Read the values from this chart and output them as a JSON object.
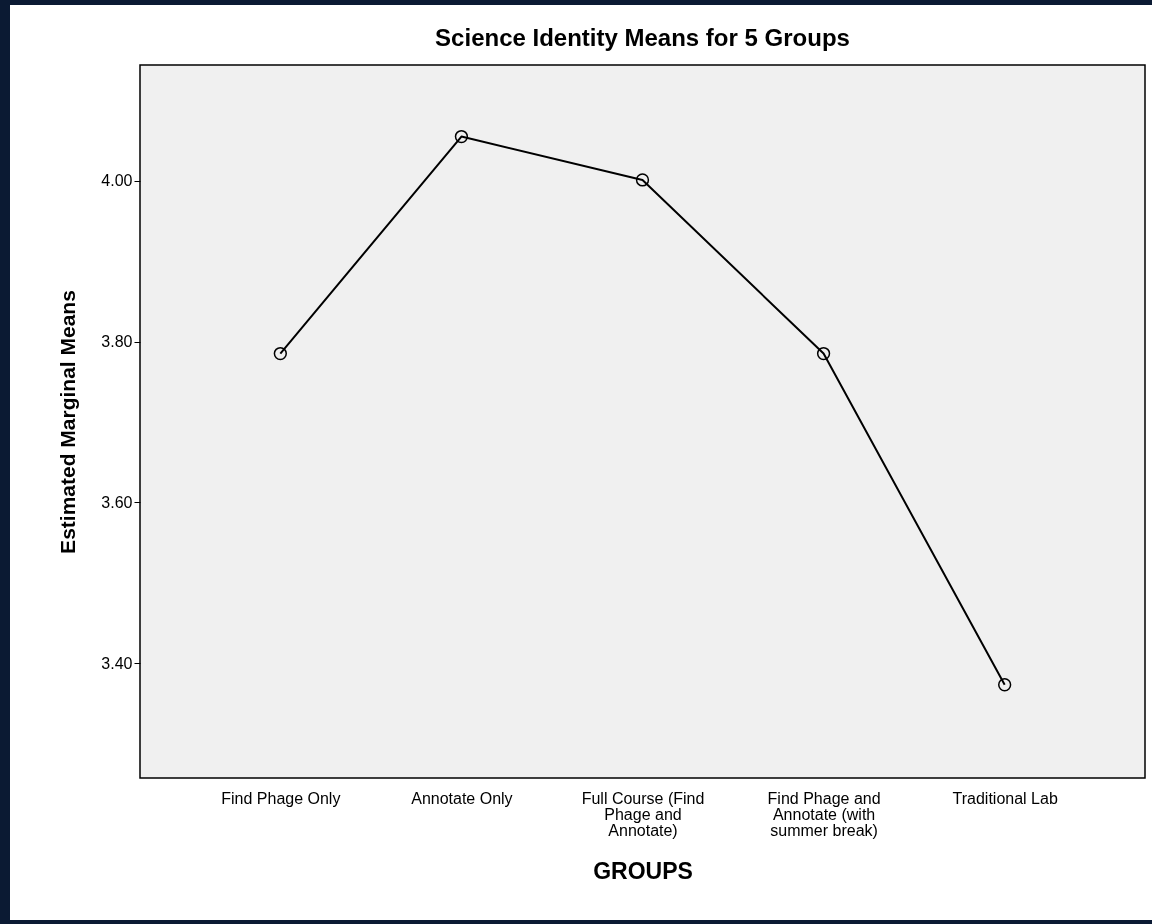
{
  "chart_data": {
    "type": "line",
    "title": "Science Identity Means for 5 Groups",
    "xlabel": "GROUPS",
    "ylabel": "Estimated Marginal Means",
    "categories": [
      "Find Phage Only",
      "Annotate Only",
      "Full Course (Find Phage and Annotate)",
      "Find Phage and Annotate (with summer break)",
      "Traditional Lab"
    ],
    "series": [
      {
        "color": "#000000",
        "values": [
          3.785,
          4.055,
          4.001,
          3.785,
          3.373
        ]
      }
    ],
    "ylim": [
      3.257,
      4.144
    ],
    "yticks": [
      {
        "value": 3.4,
        "label": "3.40"
      },
      {
        "value": 3.6,
        "label": "3.60"
      },
      {
        "value": 3.8,
        "label": "3.80"
      },
      {
        "value": 4.0,
        "label": "4.00"
      }
    ],
    "marker": "circle",
    "grid": false,
    "line_style": "solid"
  }
}
